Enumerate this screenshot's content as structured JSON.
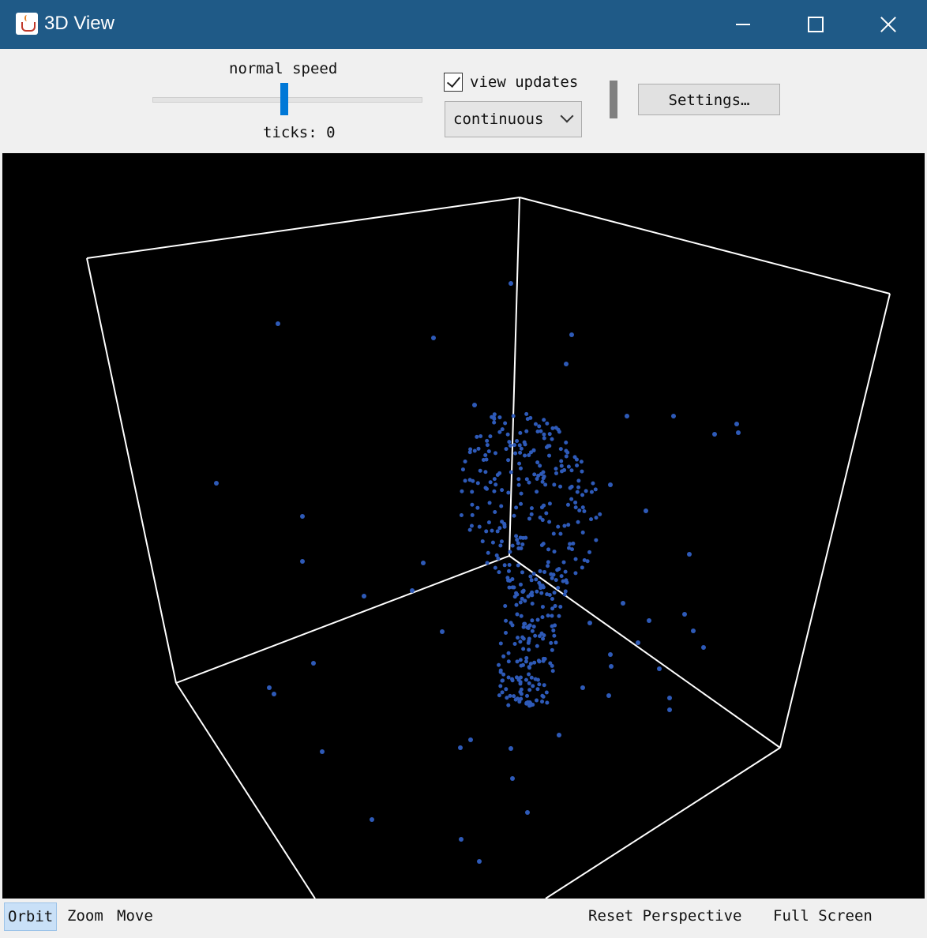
{
  "window": {
    "title": "3D View",
    "controls": [
      "minimize",
      "maximize",
      "close"
    ]
  },
  "toolbar": {
    "speed_label": "normal speed",
    "speed_value": 0.5,
    "ticks_label": "ticks: 0",
    "view_updates_label": "view updates",
    "view_updates_checked": true,
    "update_mode": "continuous",
    "settings_label": "Settings…"
  },
  "viewport": {
    "background": "#000000",
    "box_color": "#ffffff",
    "agent_color": "#2e5ab8"
  },
  "bottombar": {
    "orbit_label": "Orbit",
    "zoom_label": "Zoom",
    "move_label": "Move",
    "reset_label": "Reset Perspective",
    "fullscreen_label": "Full Screen",
    "active_mode": "Orbit"
  }
}
